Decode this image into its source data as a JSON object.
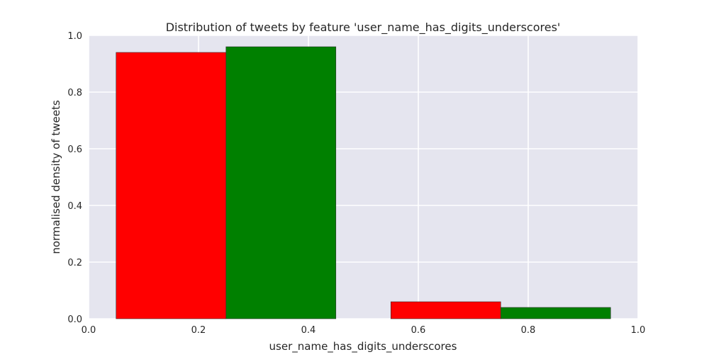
{
  "chart_data": {
    "type": "bar",
    "title": "Distribution of tweets by feature 'user_name_has_digits_underscores'",
    "xlabel": "user_name_has_digits_underscores",
    "ylabel": "normalised density of tweets",
    "xlim": [
      0.0,
      1.0
    ],
    "ylim": [
      0.0,
      1.0
    ],
    "xticks": [
      "0.0",
      "0.2",
      "0.4",
      "0.6",
      "0.8",
      "1.0"
    ],
    "yticks": [
      "0.0",
      "0.2",
      "0.4",
      "0.6",
      "0.8",
      "1.0"
    ],
    "grid": true,
    "background": "#e5e5ef",
    "bars": [
      {
        "x_start": 0.05,
        "x_end": 0.25,
        "value": 0.94,
        "color": "#ff0000"
      },
      {
        "x_start": 0.25,
        "x_end": 0.45,
        "value": 0.96,
        "color": "#008000"
      },
      {
        "x_start": 0.55,
        "x_end": 0.75,
        "value": 0.06,
        "color": "#ff0000"
      },
      {
        "x_start": 0.75,
        "x_end": 0.95,
        "value": 0.04,
        "color": "#008000"
      }
    ]
  }
}
